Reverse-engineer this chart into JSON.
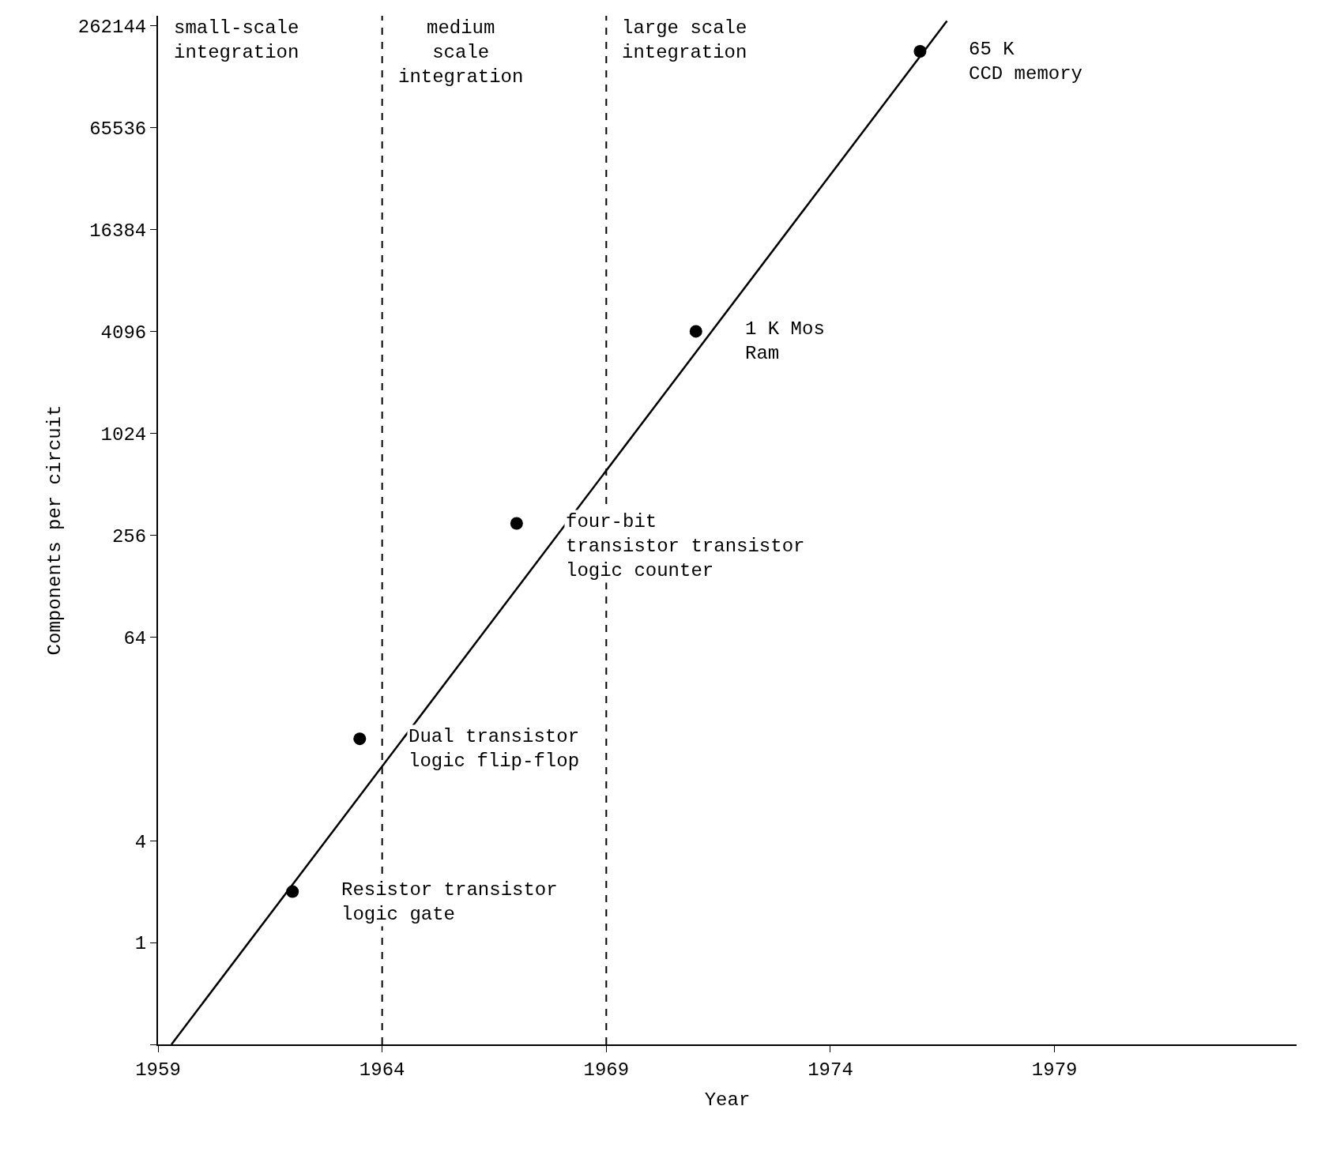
{
  "chart_data": {
    "type": "scatter",
    "xlabel": "Year",
    "ylabel": "Components per circuit",
    "log": "y",
    "xlim": [
      1959,
      1984.4
    ],
    "ylim": [
      0.25,
      300000
    ],
    "xticks": [
      1959,
      1964,
      1969,
      1974,
      1979
    ],
    "yticks": [
      {
        "value": 0.25,
        "label": null
      },
      1,
      4,
      64,
      256,
      1024,
      4096,
      16384,
      65536,
      262144
    ],
    "series": [
      {
        "color": "#000000",
        "marker": "circle",
        "x": [
          1962,
          1963.5,
          1967,
          1971,
          1976
        ],
        "values": [
          2,
          16,
          300,
          4096,
          185000
        ]
      },
      {
        "type": "line",
        "color": "#000000",
        "line_style": "solid",
        "x": [
          1959.3,
          1976.6
        ],
        "values": [
          0.25,
          280000
        ]
      }
    ],
    "ref_lines": [
      {
        "axis": "x",
        "value": 1964,
        "line_style": "dashed"
      },
      {
        "axis": "x",
        "value": 1969,
        "line_style": "dashed"
      }
    ],
    "annotations": [
      "small-scale\nintegration",
      "medium\nscale\nintegration",
      "large scale\nintegration",
      {
        "text": "Resistor transistor\nlogic gate",
        "x": 1962,
        "y": 2
      },
      {
        "text": "Dual transistor\nlogic flip-flop",
        "x": 1963.5,
        "y": 16
      },
      {
        "text": "four-bit\ntransistor transistor\nlogic counter",
        "x": 1967,
        "y": 300
      },
      {
        "text": "1 K Mos\nRam",
        "x": 1971,
        "y": 4096
      },
      {
        "text": "65 K\nCCD memory",
        "x": 1976,
        "y": 185000
      }
    ]
  }
}
